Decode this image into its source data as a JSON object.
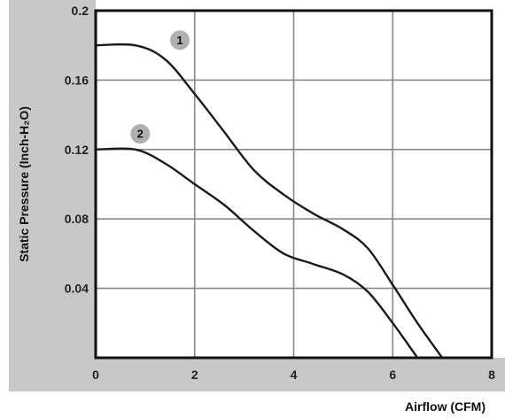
{
  "chart_data": {
    "type": "line",
    "xlabel": "Airflow (CFM)",
    "ylabel": "Static Pressure (Inch-H₂O)",
    "xlim": [
      0,
      8
    ],
    "ylim": [
      0,
      0.2
    ],
    "x_ticks": [
      "0",
      "2",
      "4",
      "6",
      "8"
    ],
    "y_ticks": [
      "0.04",
      "0.08",
      "0.12",
      "0.16",
      "0.2"
    ],
    "grid": true,
    "colors": {
      "panel": "#c8c8c8",
      "plot_bg": "#ffffff",
      "grid": "#888888",
      "curve": "#1a1a1a",
      "badge": "#b0b0b0"
    },
    "series": [
      {
        "label": "1",
        "label_at": [
          1.7,
          0.183
        ],
        "points": [
          [
            0,
            0.18
          ],
          [
            0.8,
            0.18
          ],
          [
            1.4,
            0.172
          ],
          [
            2.0,
            0.152
          ],
          [
            2.6,
            0.13
          ],
          [
            3.2,
            0.108
          ],
          [
            3.8,
            0.094
          ],
          [
            4.4,
            0.083
          ],
          [
            5.0,
            0.074
          ],
          [
            5.5,
            0.063
          ],
          [
            6.0,
            0.042
          ],
          [
            6.5,
            0.02
          ],
          [
            7.0,
            0.0
          ]
        ]
      },
      {
        "label": "2",
        "label_at": [
          0.9,
          0.129
        ],
        "points": [
          [
            0,
            0.12
          ],
          [
            0.8,
            0.12
          ],
          [
            1.4,
            0.112
          ],
          [
            2.0,
            0.1
          ],
          [
            2.6,
            0.088
          ],
          [
            3.2,
            0.073
          ],
          [
            3.8,
            0.06
          ],
          [
            4.4,
            0.054
          ],
          [
            5.0,
            0.048
          ],
          [
            5.5,
            0.038
          ],
          [
            6.0,
            0.02
          ],
          [
            6.5,
            0.0
          ]
        ]
      }
    ]
  }
}
